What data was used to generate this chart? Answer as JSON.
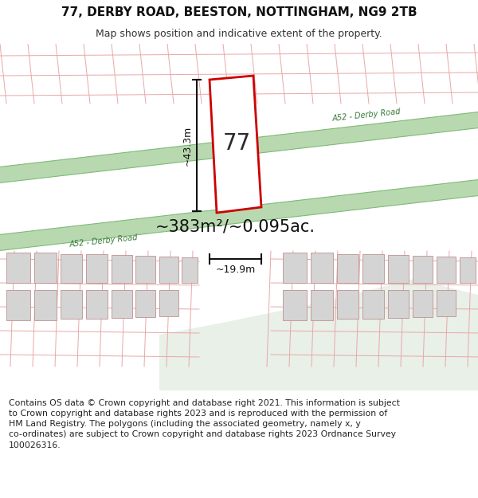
{
  "title": "77, DERBY ROAD, BEESTON, NOTTINGHAM, NG9 2TB",
  "subtitle": "Map shows position and indicative extent of the property.",
  "footer_line1": "Contains OS data © Crown copyright and database right 2021. This information is subject",
  "footer_line2": "to Crown copyright and database rights 2023 and is reproduced with the permission of",
  "footer_line3": "HM Land Registry. The polygons (including the associated geometry, namely x, y",
  "footer_line4": "co-ordinates) are subject to Crown copyright and database rights 2023 Ordnance Survey",
  "footer_line5": "100026316.",
  "area_text": "~383m²/~0.095ac.",
  "width_label": "~19.9m",
  "height_label": "~43.3m",
  "property_number": "77",
  "road_label": "A52 - Derby Road",
  "bg_map_color": "#f7f0f0",
  "bg_bottom_color": "#e8f0e8",
  "road_color": "#b8d9b0",
  "road_border_color": "#80b878",
  "road_text_color": "#3a7a3a",
  "plot_fill": "#ffffff",
  "plot_border": "#cc0000",
  "building_fill": "#d4d4d4",
  "building_border": "#c09090",
  "parcel_line_color": "#e8a8a8",
  "title_fontsize": 11,
  "subtitle_fontsize": 9,
  "footer_fontsize": 7.8,
  "area_fontsize": 15,
  "dim_fontsize": 9,
  "property_fontsize": 20,
  "road_fontsize": 7
}
